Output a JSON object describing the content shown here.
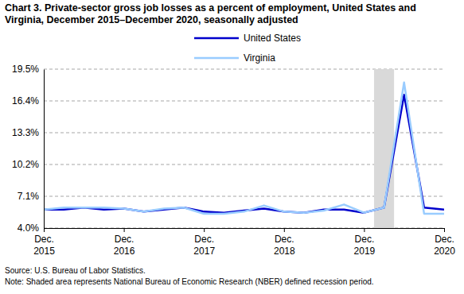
{
  "chart_data": {
    "type": "line",
    "title": "Chart 3. Private-sector gross job losses as a percent of employment, United States and Virginia, December 2015–December 2020, seasonally adjusted",
    "categories": [
      "Dec. 2015",
      null,
      null,
      null,
      "Dec. 2016",
      null,
      null,
      null,
      "Dec. 2017",
      null,
      null,
      null,
      "Dec. 2018",
      null,
      null,
      null,
      "Dec. 2019",
      null,
      null,
      null,
      "Dec. 2020"
    ],
    "series": [
      {
        "name": "United States",
        "color": "#0000cc",
        "values": [
          5.8,
          5.8,
          6.0,
          5.8,
          5.9,
          5.6,
          5.8,
          6.0,
          5.6,
          5.5,
          5.7,
          5.9,
          5.6,
          5.5,
          5.8,
          5.8,
          5.5,
          6.0,
          17.0,
          6.0,
          5.8
        ]
      },
      {
        "name": "Virginia",
        "color": "#99ccff",
        "values": [
          5.8,
          6.0,
          6.0,
          6.0,
          5.9,
          5.6,
          5.9,
          6.0,
          5.4,
          5.4,
          5.6,
          6.2,
          5.6,
          5.5,
          5.7,
          6.3,
          5.5,
          6.0,
          18.2,
          5.4,
          5.4
        ]
      }
    ],
    "ylim": [
      4.0,
      19.5
    ],
    "yticks": [
      {
        "value": 4.0,
        "label": "4.0%"
      },
      {
        "value": 7.1,
        "label": "7.1%"
      },
      {
        "value": 10.2,
        "label": "10.2%"
      },
      {
        "value": 13.3,
        "label": "13.3%"
      },
      {
        "value": 16.4,
        "label": "16.4%"
      },
      {
        "value": 19.5,
        "label": "19.5%"
      }
    ],
    "grid": true,
    "legend": "top",
    "recession": {
      "from": 16.5,
      "to": 17.5
    },
    "source": "Source: U.S. Bureau of Labor Statistics.",
    "note": "Note: Shaded area represents National Bureau of Economic Research (NBER) defined recession period."
  }
}
